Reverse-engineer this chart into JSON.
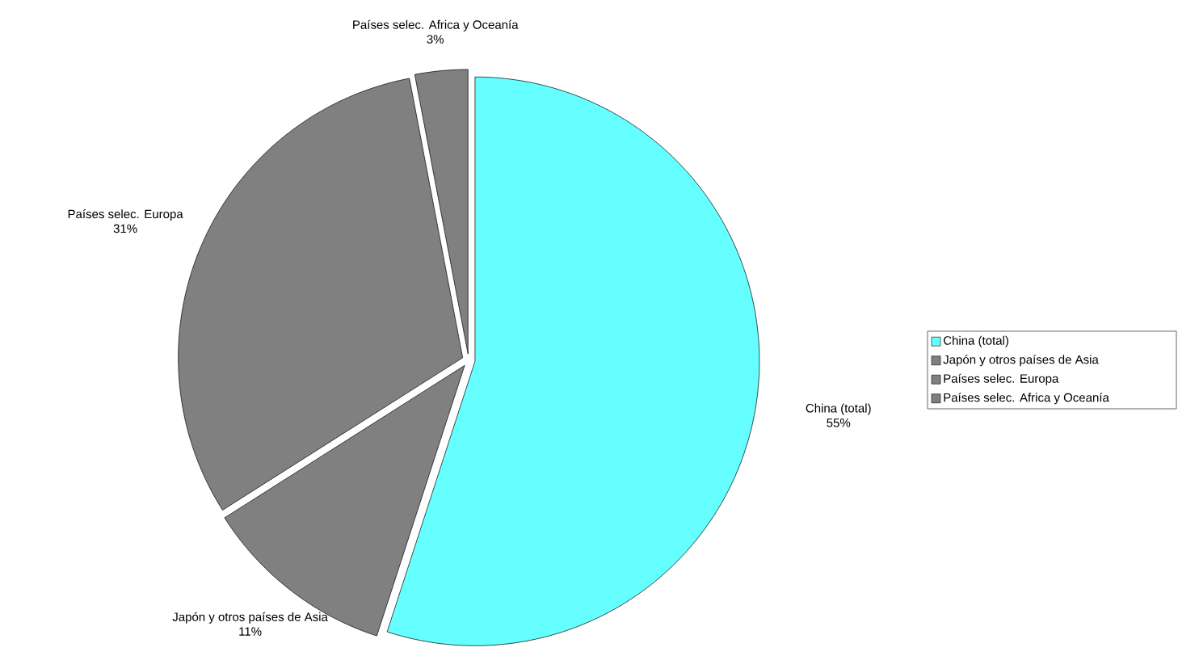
{
  "chart_data": {
    "type": "pie",
    "categories": [
      "China (total)",
      "Japón y otros países de Asia",
      "Países selec. Europa",
      "Países selec. Africa y Oceanía"
    ],
    "values": [
      55,
      11,
      31,
      3
    ],
    "colors": [
      "#66ffff",
      "#808080",
      "#808080",
      "#808080"
    ],
    "data_labels": true,
    "value_labels": [
      "55%",
      "11%",
      "31%",
      "3%"
    ],
    "legend": "right"
  }
}
